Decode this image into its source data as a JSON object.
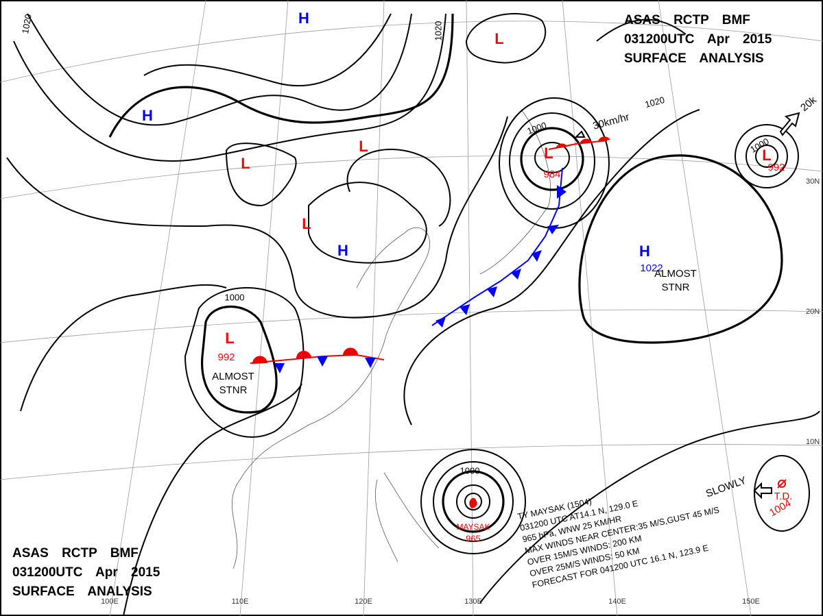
{
  "headers": [
    {
      "lines": [
        "ASAS RCTP BMF",
        "031200UTC Apr 2015",
        "SURFACE ANALYSIS"
      ]
    },
    {
      "lines": [
        "ASAS RCTP BMF",
        "031200UTC Apr 2015",
        "SURFACE ANALYSIS"
      ]
    }
  ],
  "centers": [
    {
      "symbol": "H",
      "color": "blue"
    },
    {
      "symbol": "H",
      "color": "blue"
    },
    {
      "symbol": "L",
      "color": "red"
    },
    {
      "symbol": "L",
      "color": "red"
    },
    {
      "symbol": "L",
      "color": "red"
    },
    {
      "symbol": "L",
      "color": "red"
    },
    {
      "symbol": "H",
      "color": "blue"
    },
    {
      "symbol": "L",
      "color": "red",
      "pressure": "984"
    },
    {
      "symbol": "L",
      "color": "red",
      "pressure": "992"
    },
    {
      "symbol": "H",
      "color": "blue",
      "pressure": "1022"
    },
    {
      "symbol": "L",
      "color": "red",
      "pressure": "992"
    }
  ],
  "typhoon": {
    "name": "MAYSAK",
    "pressure": "965",
    "lines": [
      "TY MAYSAK (1504)",
      "031200 UTC AT14.1 N, 129.0 E",
      "965 hPa, WNW 25 KM/HR",
      "MAX WINDS NEAR CENTER:35 M/S,GUST 45 M/S",
      "OVER 15M/S WINDS: 200 KM",
      "OVER 25M/S WINDS: 50 KM",
      "FORECAST FOR 041200 UTC 16.1 N, 123.9 E"
    ]
  },
  "depression": {
    "label": "T.D.",
    "pressure": "1004",
    "motion": "SLOWLY"
  },
  "isobar_labels": [
    "1020",
    "1020",
    "1000",
    "1000",
    "1020",
    "1000",
    "1000"
  ],
  "annotations": [
    {
      "lines": [
        "ALMOST",
        "STNR"
      ]
    },
    {
      "lines": [
        "ALMOST",
        "STNR"
      ]
    },
    {
      "text": "30km/hr"
    },
    {
      "text": "20k"
    }
  ],
  "latitudes": [
    "30N",
    "20N",
    "10N"
  ],
  "longitudes": [
    "100E",
    "110E",
    "120E",
    "130E",
    "140E",
    "150E"
  ]
}
